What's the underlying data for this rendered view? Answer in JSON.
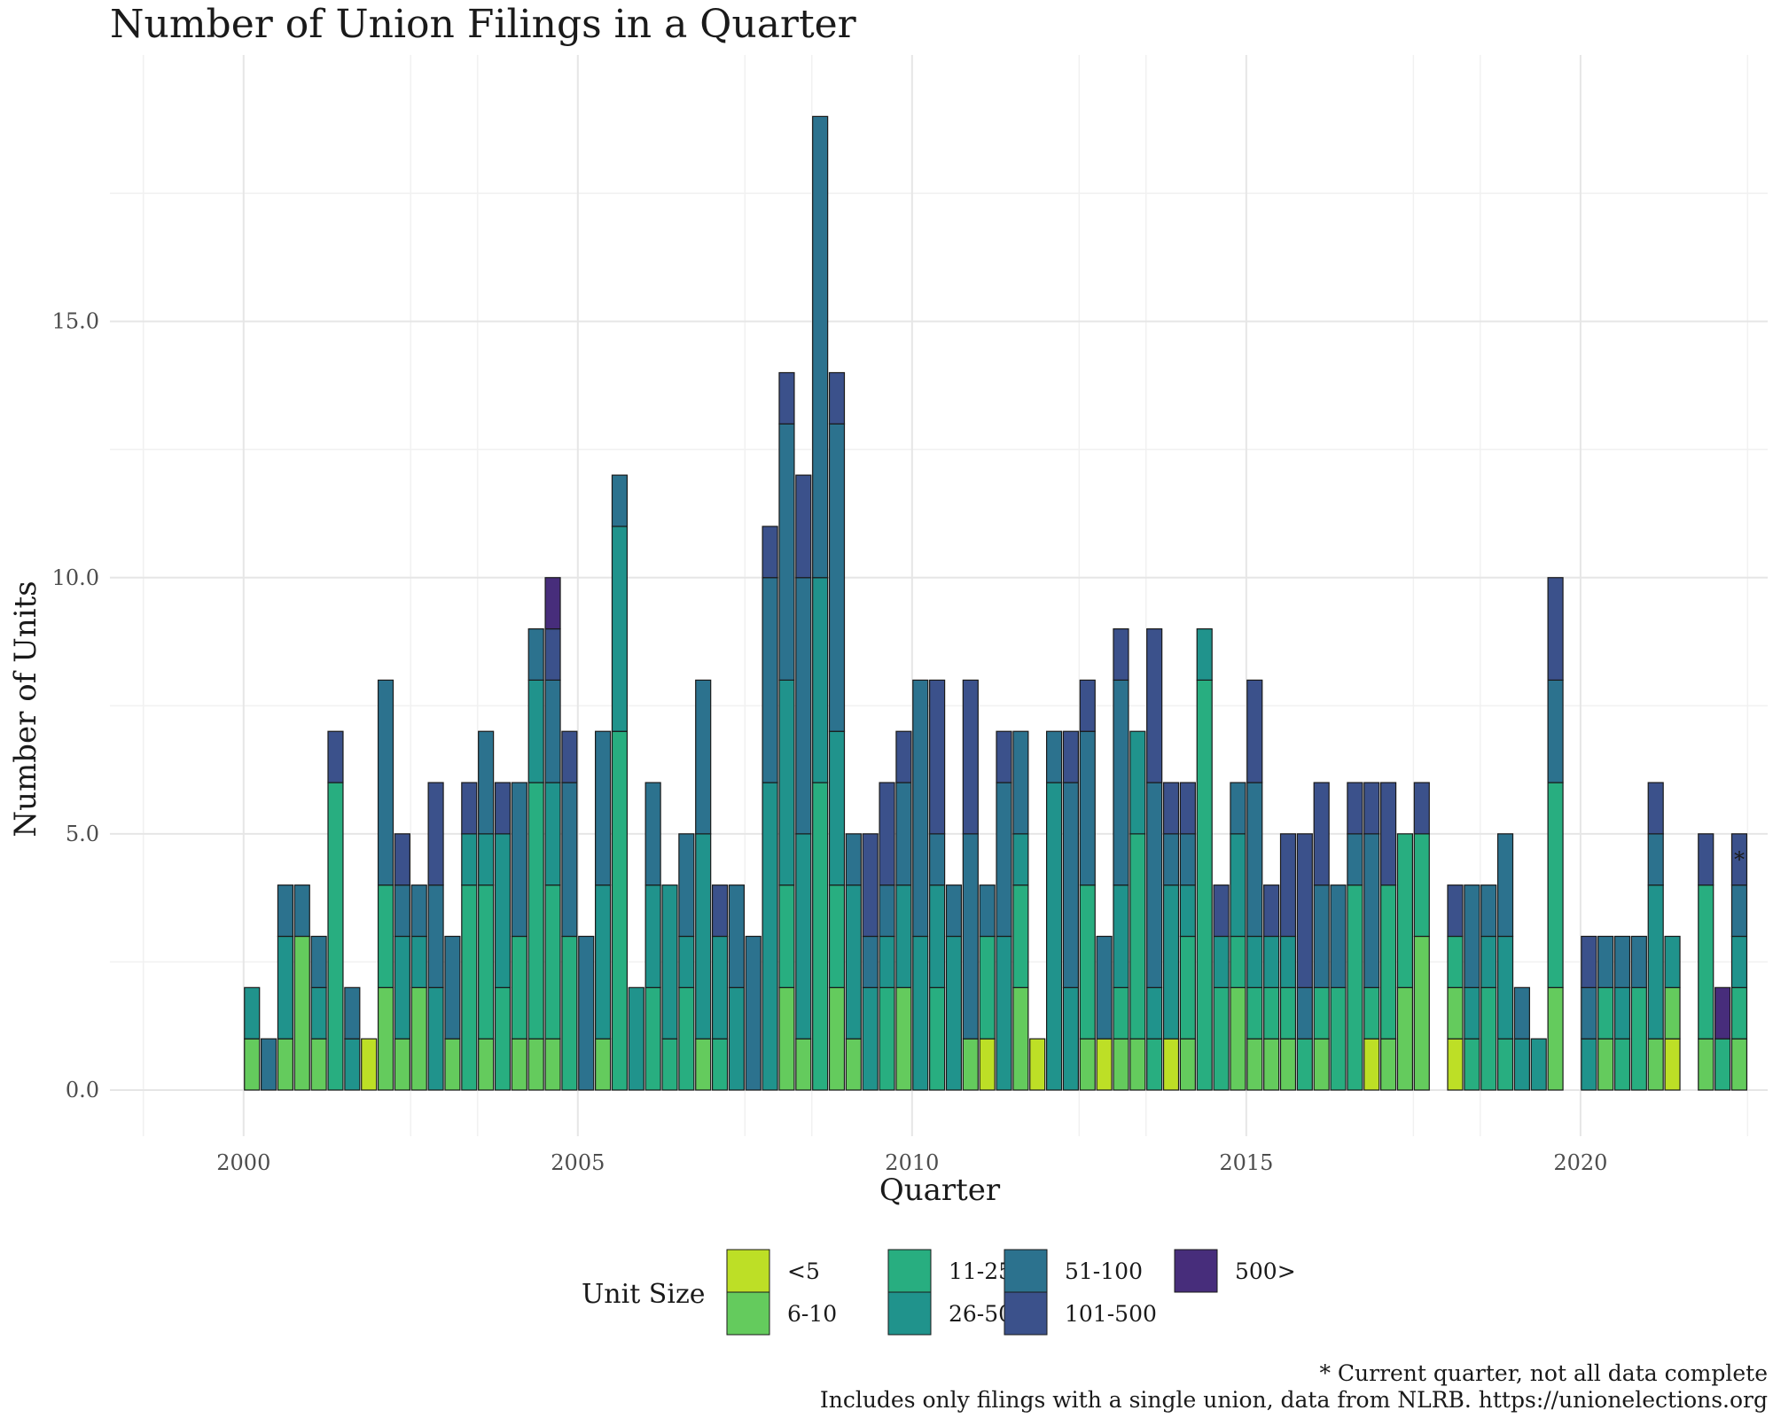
{
  "chart_data": {
    "type": "bar",
    "stacked": true,
    "title": "Number of Union Filings in a Quarter",
    "xlabel": "Quarter",
    "ylabel": "Number of Units",
    "xlim": [
      1998.0,
      2022.8
    ],
    "ylim": [
      -0.9,
      20.2
    ],
    "x_ticks": [
      "2000",
      "2005",
      "2010",
      "2015",
      "2020"
    ],
    "x_tick_values": [
      2000,
      2005,
      2010,
      2015,
      2020
    ],
    "y_ticks": [
      "0.0",
      "5.0",
      "10.0",
      "15.0"
    ],
    "y_tick_values": [
      0,
      5,
      10,
      15
    ],
    "grid": true,
    "legend": {
      "title": "Unit Size",
      "placement": "bottom"
    },
    "categories": [
      "2000-Q1",
      "2000-Q2",
      "2000-Q3",
      "2000-Q4",
      "2001-Q1",
      "2001-Q2",
      "2001-Q3",
      "2001-Q4",
      "2002-Q1",
      "2002-Q2",
      "2002-Q3",
      "2002-Q4",
      "2003-Q1",
      "2003-Q2",
      "2003-Q3",
      "2003-Q4",
      "2004-Q1",
      "2004-Q2",
      "2004-Q3",
      "2004-Q4",
      "2005-Q1",
      "2005-Q2",
      "2005-Q3",
      "2005-Q4",
      "2006-Q1",
      "2006-Q2",
      "2006-Q3",
      "2006-Q4",
      "2007-Q1",
      "2007-Q2",
      "2007-Q3",
      "2007-Q4",
      "2008-Q1",
      "2008-Q2",
      "2008-Q3",
      "2008-Q4",
      "2009-Q1",
      "2009-Q2",
      "2009-Q3",
      "2009-Q4",
      "2010-Q1",
      "2010-Q2",
      "2010-Q3",
      "2010-Q4",
      "2011-Q1",
      "2011-Q2",
      "2011-Q3",
      "2011-Q4",
      "2012-Q1",
      "2012-Q2",
      "2012-Q3",
      "2012-Q4",
      "2013-Q1",
      "2013-Q2",
      "2013-Q3",
      "2013-Q4",
      "2014-Q1",
      "2014-Q2",
      "2014-Q3",
      "2014-Q4",
      "2015-Q1",
      "2015-Q2",
      "2015-Q3",
      "2015-Q4",
      "2016-Q1",
      "2016-Q2",
      "2016-Q3",
      "2016-Q4",
      "2017-Q1",
      "2017-Q2",
      "2017-Q3",
      "2017-Q4",
      "2018-Q1",
      "2018-Q2",
      "2018-Q3",
      "2018-Q4",
      "2019-Q1",
      "2019-Q2",
      "2019-Q3",
      "2019-Q4",
      "2020-Q1",
      "2020-Q2",
      "2020-Q3",
      "2020-Q4",
      "2021-Q1",
      "2021-Q2",
      "2021-Q3",
      "2021-Q4",
      "2022-Q1",
      "2022-Q2"
    ],
    "x": [
      2000.125,
      2000.375,
      2000.625,
      2000.875,
      2001.125,
      2001.375,
      2001.625,
      2001.875,
      2002.125,
      2002.375,
      2002.625,
      2002.875,
      2003.125,
      2003.375,
      2003.625,
      2003.875,
      2004.125,
      2004.375,
      2004.625,
      2004.875,
      2005.125,
      2005.375,
      2005.625,
      2005.875,
      2006.125,
      2006.375,
      2006.625,
      2006.875,
      2007.125,
      2007.375,
      2007.625,
      2007.875,
      2008.125,
      2008.375,
      2008.625,
      2008.875,
      2009.125,
      2009.375,
      2009.625,
      2009.875,
      2010.125,
      2010.375,
      2010.625,
      2010.875,
      2011.125,
      2011.375,
      2011.625,
      2011.875,
      2012.125,
      2012.375,
      2012.625,
      2012.875,
      2013.125,
      2013.375,
      2013.625,
      2013.875,
      2014.125,
      2014.375,
      2014.625,
      2014.875,
      2015.125,
      2015.375,
      2015.625,
      2015.875,
      2016.125,
      2016.375,
      2016.625,
      2016.875,
      2017.125,
      2017.375,
      2017.625,
      2017.875,
      2018.125,
      2018.375,
      2018.625,
      2018.875,
      2019.125,
      2019.375,
      2019.625,
      2019.875,
      2020.125,
      2020.375,
      2020.625,
      2020.875,
      2021.125,
      2021.375,
      2021.625,
      2021.875,
      2022.125,
      2022.375
    ],
    "series": [
      {
        "name": "<5",
        "color": "#bddf26",
        "values": [
          0,
          0,
          0,
          0,
          0,
          0,
          0,
          1,
          0,
          0,
          0,
          0,
          0,
          0,
          0,
          0,
          0,
          0,
          0,
          0,
          0,
          0,
          0,
          0,
          0,
          0,
          0,
          0,
          0,
          0,
          0,
          0,
          0,
          0,
          0,
          0,
          0,
          0,
          0,
          0,
          0,
          0,
          0,
          0,
          1,
          0,
          0,
          1,
          0,
          0,
          0,
          1,
          0,
          0,
          0,
          1,
          0,
          0,
          0,
          0,
          0,
          0,
          0,
          0,
          0,
          0,
          0,
          1,
          0,
          0,
          0,
          0,
          1,
          0,
          0,
          0,
          0,
          0,
          0,
          0,
          0,
          0,
          0,
          0,
          0,
          1,
          0,
          0,
          0,
          0
        ]
      },
      {
        "name": "6-10",
        "color": "#64cb5d",
        "values": [
          1,
          0,
          1,
          3,
          1,
          0,
          0,
          0,
          2,
          1,
          2,
          0,
          1,
          0,
          1,
          0,
          1,
          1,
          1,
          0,
          0,
          1,
          0,
          0,
          0,
          0,
          0,
          1,
          0,
          0,
          0,
          0,
          2,
          1,
          0,
          2,
          1,
          0,
          0,
          2,
          0,
          0,
          0,
          1,
          0,
          0,
          2,
          0,
          0,
          0,
          1,
          0,
          1,
          1,
          0,
          0,
          1,
          0,
          0,
          2,
          1,
          1,
          1,
          0,
          1,
          0,
          0,
          0,
          1,
          2,
          3,
          0,
          1,
          0,
          0,
          0,
          0,
          0,
          2,
          0,
          0,
          1,
          0,
          0,
          1,
          1,
          0,
          1,
          0,
          1
        ]
      },
      {
        "name": "11-25",
        "color": "#28ae80",
        "values": [
          0,
          0,
          0,
          0,
          0,
          6,
          0,
          0,
          2,
          0,
          0,
          0,
          0,
          4,
          3,
          2,
          2,
          5,
          3,
          3,
          0,
          0,
          7,
          0,
          2,
          1,
          2,
          0,
          1,
          0,
          0,
          0,
          2,
          0,
          6,
          2,
          0,
          0,
          2,
          0,
          0,
          2,
          0,
          0,
          2,
          0,
          2,
          0,
          0,
          0,
          3,
          0,
          1,
          4,
          1,
          0,
          2,
          8,
          2,
          1,
          1,
          1,
          1,
          1,
          1,
          2,
          4,
          1,
          3,
          3,
          2,
          0,
          1,
          1,
          2,
          1,
          0,
          0,
          4,
          0,
          0,
          1,
          1,
          2,
          0,
          0,
          0,
          3,
          1,
          1
        ]
      },
      {
        "name": "26-50",
        "color": "#20938c",
        "values": [
          1,
          0,
          2,
          0,
          1,
          0,
          1,
          0,
          0,
          2,
          1,
          2,
          0,
          1,
          1,
          3,
          0,
          2,
          2,
          0,
          0,
          3,
          4,
          2,
          2,
          3,
          1,
          4,
          2,
          2,
          0,
          6,
          4,
          4,
          4,
          3,
          3,
          2,
          1,
          2,
          3,
          2,
          3,
          0,
          0,
          3,
          1,
          0,
          6,
          2,
          0,
          0,
          2,
          2,
          1,
          3,
          1,
          1,
          1,
          2,
          1,
          1,
          1,
          0,
          0,
          0,
          0,
          0,
          0,
          0,
          0,
          0,
          0,
          1,
          1,
          2,
          1,
          1,
          0,
          0,
          1,
          0,
          1,
          0,
          3,
          1,
          0,
          0,
          0,
          1
        ]
      },
      {
        "name": "51-100",
        "color": "#2c728e",
        "values": [
          0,
          1,
          1,
          1,
          1,
          0,
          1,
          0,
          4,
          1,
          1,
          2,
          2,
          0,
          2,
          0,
          3,
          1,
          2,
          3,
          3,
          3,
          1,
          0,
          2,
          0,
          2,
          3,
          0,
          2,
          3,
          4,
          5,
          5,
          9,
          6,
          1,
          1,
          1,
          2,
          5,
          1,
          1,
          4,
          1,
          3,
          2,
          0,
          1,
          4,
          3,
          2,
          4,
          0,
          4,
          1,
          1,
          0,
          0,
          1,
          3,
          0,
          0,
          1,
          2,
          2,
          1,
          3,
          0,
          0,
          0,
          0,
          0,
          2,
          1,
          2,
          1,
          0,
          2,
          0,
          1,
          1,
          1,
          1,
          1,
          0,
          0,
          0,
          0,
          1
        ]
      },
      {
        "name": "101-500",
        "color": "#3b518b",
        "values": [
          0,
          0,
          0,
          0,
          0,
          1,
          0,
          0,
          0,
          1,
          0,
          2,
          0,
          1,
          0,
          1,
          0,
          0,
          1,
          1,
          0,
          0,
          0,
          0,
          0,
          0,
          0,
          0,
          1,
          0,
          0,
          1,
          1,
          2,
          0,
          1,
          0,
          2,
          2,
          1,
          0,
          3,
          0,
          3,
          0,
          1,
          0,
          0,
          0,
          1,
          1,
          0,
          1,
          0,
          3,
          1,
          1,
          0,
          1,
          0,
          2,
          1,
          2,
          3,
          2,
          0,
          1,
          1,
          2,
          0,
          1,
          0,
          1,
          0,
          0,
          0,
          0,
          0,
          2,
          0,
          1,
          0,
          0,
          0,
          1,
          0,
          0,
          1,
          0,
          1
        ]
      },
      {
        "name": "500>",
        "color": "#472d7b",
        "values": [
          0,
          0,
          0,
          0,
          0,
          0,
          0,
          0,
          0,
          0,
          0,
          0,
          0,
          0,
          0,
          0,
          0,
          0,
          1,
          0,
          0,
          0,
          0,
          0,
          0,
          0,
          0,
          0,
          0,
          0,
          0,
          0,
          0,
          0,
          0,
          0,
          0,
          0,
          0,
          0,
          0,
          0,
          0,
          0,
          0,
          0,
          0,
          0,
          0,
          0,
          0,
          0,
          0,
          0,
          0,
          0,
          0,
          0,
          0,
          0,
          0,
          0,
          0,
          0,
          0,
          0,
          0,
          0,
          0,
          0,
          0,
          0,
          0,
          0,
          0,
          0,
          0,
          0,
          0,
          0,
          0,
          0,
          0,
          0,
          0,
          0,
          0,
          0,
          1,
          0
        ]
      }
    ],
    "annotations": [
      {
        "text": "*",
        "x": 2022.375,
        "y": 4.5
      }
    ],
    "caption_line1": "* Current quarter, not all data complete",
    "caption_line2": "Includes only filings with a single union, data from NLRB. https://unionelections.org"
  }
}
